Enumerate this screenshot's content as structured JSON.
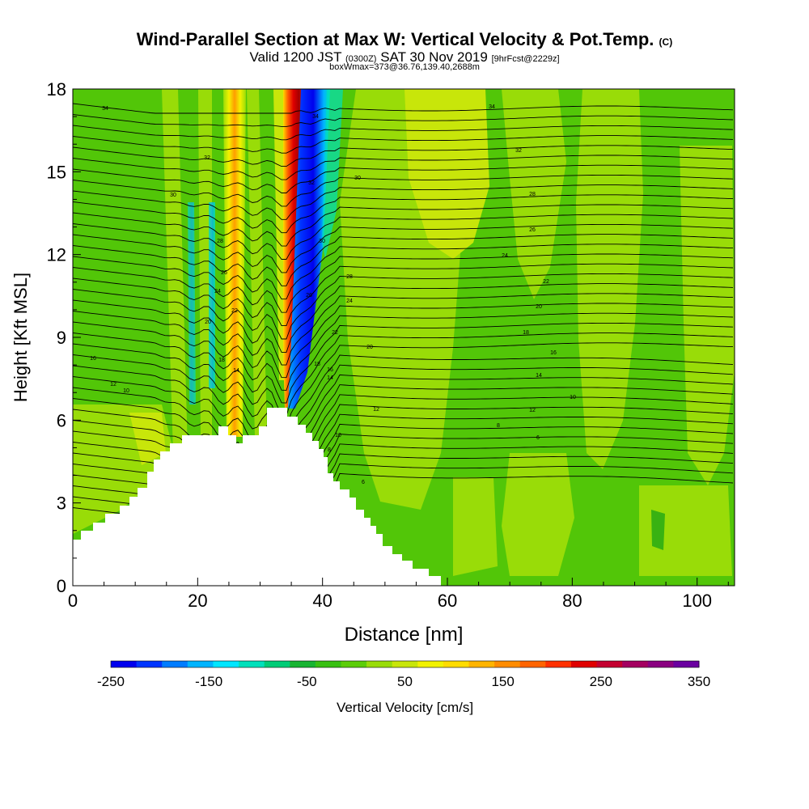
{
  "chart_data": {
    "type": "heatmap",
    "title": "Wind-Parallel Section at Max W: Vertical Velocity & Pot.Temp.",
    "title_mark": "(C)",
    "subtitle_main": "Valid 1200 JST",
    "subtitle_z": "(0300Z)",
    "subtitle_date": "SAT 30 Nov 2019",
    "subtitle_fcst": "[9hrFcst@2229z]",
    "subtitle2": "boxWmax=373@36.76,139.40,2688m",
    "xlabel": "Distance [nm]",
    "ylabel": "Height [Kft MSL]",
    "xlim": [
      0,
      106
    ],
    "ylim": [
      0,
      18
    ],
    "xticks": [
      "0",
      "20",
      "40",
      "60",
      "80",
      "100"
    ],
    "yticks": [
      "0",
      "3",
      "6",
      "9",
      "12",
      "15",
      "18"
    ],
    "colorbar_label": "Vertical Velocity [cm/s]",
    "colorbar_ticks": [
      "-250",
      "-150",
      "-50",
      "50",
      "150",
      "250",
      "350"
    ],
    "colorbar_colors": [
      "#0000ee",
      "#0035ff",
      "#007cff",
      "#00b4ff",
      "#00e6ff",
      "#00e0bb",
      "#00cc77",
      "#18b432",
      "#38c012",
      "#5ccd08",
      "#99dc08",
      "#c8e60a",
      "#f2f200",
      "#ffdc00",
      "#ffb400",
      "#ff8c00",
      "#ff6400",
      "#ff3000",
      "#e00000",
      "#c40030",
      "#a40060",
      "#8a0080",
      "#6a00a0"
    ],
    "field_colors": {
      "background": "#52c608",
      "light": "#99dc08",
      "yellowish": "#c8e60a",
      "yellow": "#f2f200",
      "dark": "#38b212"
    },
    "vertical_velocity_bands": [
      {
        "x_range": [
          23,
          28
        ],
        "w_cm_s": [
          60,
          200
        ]
      },
      {
        "x_range": [
          34,
          36
        ],
        "w_cm_s": [
          200,
          350
        ]
      },
      {
        "x_range": [
          36,
          40
        ],
        "w_cm_s": [
          -250,
          -50
        ]
      }
    ],
    "max_w_cm_s": 373,
    "theta_labels": {
      "left": [
        "34",
        "32",
        "30",
        "28",
        "26",
        "24",
        "22",
        "20",
        "18",
        "16",
        "14",
        "12",
        "10"
      ],
      "center": [
        "34",
        "32",
        "30",
        "28",
        "26",
        "24",
        "22",
        "20",
        "18",
        "16",
        "14",
        "12",
        "10",
        "8",
        "6"
      ],
      "right": [
        "34",
        "32",
        "30",
        "28",
        "26",
        "24",
        "22",
        "20",
        "18",
        "16",
        "14",
        "12",
        "10",
        "8",
        "6"
      ]
    }
  }
}
